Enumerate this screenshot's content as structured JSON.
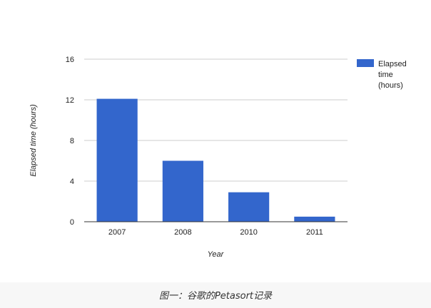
{
  "chart_data": {
    "type": "bar",
    "categories": [
      "2007",
      "2008",
      "2010",
      "2011"
    ],
    "series": [
      {
        "name": "Elapsed time (hours)",
        "values": [
          12.1,
          6.0,
          2.9,
          0.5
        ],
        "color": "#3366cc"
      }
    ],
    "xlabel": "Year",
    "ylabel": "Elapsed time (hours)",
    "ylim": [
      0,
      16
    ],
    "yticks": [
      0,
      4,
      8,
      12,
      16
    ],
    "grid": true,
    "legend": {
      "position": "right",
      "lines": [
        "Elapsed",
        "time",
        "(hours)"
      ]
    }
  },
  "caption": "图一：谷歌的Petasort记录"
}
